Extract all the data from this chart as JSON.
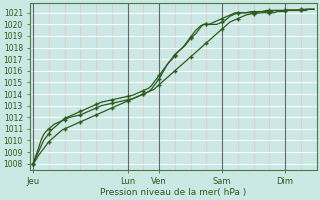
{
  "bg_color": "#cce8e4",
  "line_color": "#2d5a1e",
  "xlabel": "Pression niveau de la mer( hPa )",
  "ylim": [
    1007.5,
    1021.8
  ],
  "yticks": [
    1008,
    1009,
    1010,
    1011,
    1012,
    1013,
    1014,
    1015,
    1016,
    1017,
    1018,
    1019,
    1020,
    1021
  ],
  "xtick_labels": [
    "Jeu",
    "Lun",
    "Ven",
    "Sam",
    "Dim"
  ],
  "xtick_positions": [
    0,
    36,
    48,
    72,
    96
  ],
  "major_vlines": [
    0,
    36,
    48,
    72,
    96
  ],
  "xlim": [
    -1,
    108
  ],
  "num_points": 108,
  "series1_y": [
    1008.0,
    1008.3,
    1008.7,
    1009.0,
    1009.3,
    1009.6,
    1009.9,
    1010.1,
    1010.3,
    1010.5,
    1010.7,
    1010.9,
    1011.0,
    1011.1,
    1011.2,
    1011.3,
    1011.4,
    1011.5,
    1011.6,
    1011.7,
    1011.8,
    1011.9,
    1012.0,
    1012.1,
    1012.2,
    1012.3,
    1012.4,
    1012.5,
    1012.6,
    1012.7,
    1012.8,
    1012.9,
    1013.0,
    1013.1,
    1013.2,
    1013.3,
    1013.4,
    1013.5,
    1013.6,
    1013.7,
    1013.8,
    1013.9,
    1014.0,
    1014.1,
    1014.2,
    1014.3,
    1014.4,
    1014.6,
    1014.8,
    1015.0,
    1015.2,
    1015.4,
    1015.6,
    1015.8,
    1016.0,
    1016.2,
    1016.4,
    1016.6,
    1016.8,
    1017.0,
    1017.2,
    1017.4,
    1017.6,
    1017.8,
    1018.0,
    1018.2,
    1018.4,
    1018.6,
    1018.8,
    1019.0,
    1019.2,
    1019.4,
    1019.6,
    1019.8,
    1020.0,
    1020.2,
    1020.3,
    1020.4,
    1020.5,
    1020.6,
    1020.7,
    1020.8,
    1020.85,
    1020.9,
    1020.92,
    1020.95,
    1020.97,
    1021.0,
    1021.0,
    1021.0,
    1021.0,
    1021.0,
    1021.0,
    1021.1,
    1021.1,
    1021.1,
    1021.15,
    1021.2,
    1021.2,
    1021.2,
    1021.2,
    1021.2,
    1021.2,
    1021.2,
    1021.2,
    1021.3,
    1021.3,
    1021.3
  ],
  "series2_y": [
    1008.0,
    1008.5,
    1009.0,
    1009.5,
    1010.0,
    1010.3,
    1010.6,
    1010.9,
    1011.1,
    1011.3,
    1011.5,
    1011.7,
    1011.9,
    1012.0,
    1012.1,
    1012.2,
    1012.3,
    1012.4,
    1012.5,
    1012.6,
    1012.7,
    1012.8,
    1012.9,
    1013.0,
    1013.1,
    1013.2,
    1013.3,
    1013.35,
    1013.4,
    1013.45,
    1013.5,
    1013.55,
    1013.6,
    1013.65,
    1013.7,
    1013.75,
    1013.8,
    1013.85,
    1013.9,
    1014.0,
    1014.1,
    1014.2,
    1014.3,
    1014.4,
    1014.5,
    1014.7,
    1015.0,
    1015.3,
    1015.6,
    1015.9,
    1016.2,
    1016.5,
    1016.8,
    1017.1,
    1017.4,
    1017.6,
    1017.8,
    1018.0,
    1018.2,
    1018.5,
    1018.8,
    1019.0,
    1019.2,
    1019.5,
    1019.8,
    1020.0,
    1020.0,
    1020.0,
    1020.0,
    1020.0,
    1020.0,
    1020.1,
    1020.2,
    1020.3,
    1020.5,
    1020.7,
    1020.8,
    1020.9,
    1021.0,
    1021.0,
    1021.0,
    1021.0,
    1021.0,
    1021.0,
    1021.0,
    1021.0,
    1021.1,
    1021.1,
    1021.1,
    1021.1,
    1021.1,
    1021.1,
    1021.2,
    1021.2,
    1021.2,
    1021.2,
    1021.2,
    1021.2,
    1021.2,
    1021.2,
    1021.2,
    1021.2,
    1021.2,
    1021.2,
    1021.3,
    1021.3,
    1021.3,
    1021.3
  ],
  "series3_y": [
    1008.0,
    1008.7,
    1009.3,
    1010.0,
    1010.5,
    1010.8,
    1011.0,
    1011.2,
    1011.4,
    1011.5,
    1011.6,
    1011.7,
    1011.8,
    1011.9,
    1012.0,
    1012.05,
    1012.1,
    1012.15,
    1012.2,
    1012.3,
    1012.4,
    1012.5,
    1012.6,
    1012.7,
    1012.8,
    1012.9,
    1013.0,
    1013.05,
    1013.1,
    1013.15,
    1013.2,
    1013.25,
    1013.3,
    1013.35,
    1013.4,
    1013.45,
    1013.5,
    1013.55,
    1013.6,
    1013.7,
    1013.8,
    1013.9,
    1014.0,
    1014.1,
    1014.2,
    1014.4,
    1014.7,
    1015.0,
    1015.3,
    1015.7,
    1016.1,
    1016.5,
    1016.8,
    1017.0,
    1017.3,
    1017.6,
    1017.8,
    1018.0,
    1018.3,
    1018.6,
    1018.9,
    1019.2,
    1019.5,
    1019.7,
    1019.9,
    1020.0,
    1020.0,
    1020.0,
    1020.1,
    1020.2,
    1020.3,
    1020.4,
    1020.5,
    1020.6,
    1020.7,
    1020.8,
    1020.9,
    1021.0,
    1021.0,
    1021.0,
    1021.0,
    1021.0,
    1021.05,
    1021.1,
    1021.1,
    1021.1,
    1021.1,
    1021.1,
    1021.15,
    1021.2,
    1021.2,
    1021.2,
    1021.2,
    1021.2,
    1021.2,
    1021.2,
    1021.2,
    1021.25,
    1021.25,
    1021.25,
    1021.25,
    1021.25,
    1021.3,
    1021.3,
    1021.3,
    1021.3,
    1021.3,
    1021.3
  ]
}
